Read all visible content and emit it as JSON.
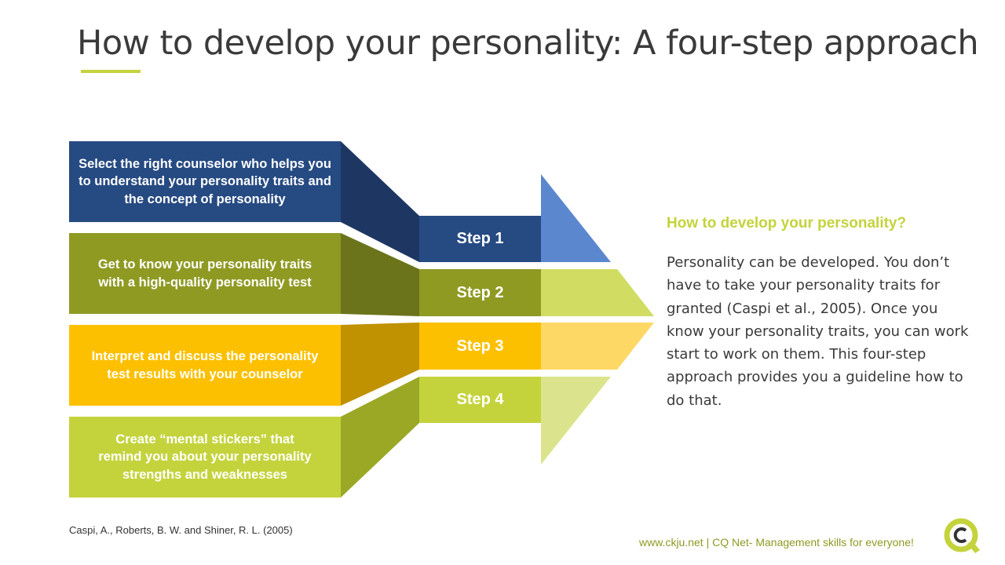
{
  "title": "How to develop your personality:  A four-step approach",
  "steps": [
    {
      "label": "Step 1",
      "description": "Select the right counselor who helps you to understand your personality traits and the concept of personality",
      "colors": {
        "main": "#264a82",
        "dark": "#1e3762",
        "light": "#5b87cf"
      }
    },
    {
      "label": "Step 2",
      "description": "Get to know your personality traits with a high-quality personality test",
      "colors": {
        "main": "#8f9a23",
        "dark": "#6b741b",
        "light": "#d0dc62"
      }
    },
    {
      "label": "Step 3",
      "description": "Interpret and discuss the personality test results with your counselor",
      "colors": {
        "main": "#fdc000",
        "dark": "#c09100",
        "light": "#fdd865"
      }
    },
    {
      "label": "Step 4",
      "description": "Create “mental stickers” that remind you about your personality strengths and weaknesses",
      "colors": {
        "main": "#c4d33c",
        "dark": "#9aa826",
        "light": "#dbe48c"
      }
    }
  ],
  "side": {
    "heading": "How to develop your personality?",
    "body": "Personality can be developed. You don’t have to take your personality traits for granted (Caspi et al., 2005). Once you know your personality traits, you can work start to work on them. This four-step approach provides you a guideline how to do that."
  },
  "citation": "Caspi, A., Roberts, B. W. and Shiner, R. L. (2005)",
  "footer": "www.ckju.net | CQ Net- Management skills for everyone!",
  "logo": {
    "text": "CQ",
    "accent": "#c4d33c"
  }
}
